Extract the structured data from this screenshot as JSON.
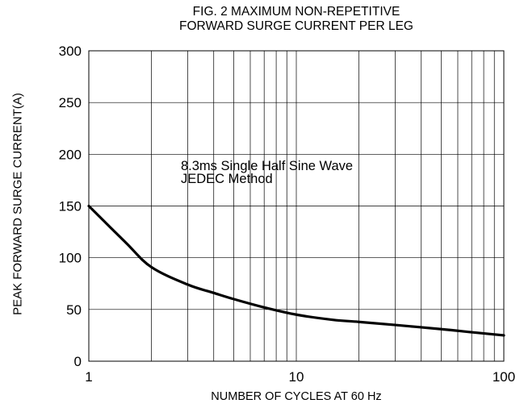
{
  "chart_data": {
    "type": "line",
    "title_lines": [
      "FIG. 2 MAXIMUM NON-REPETITIVE",
      "FORWARD SURGE CURRENT PER LEG"
    ],
    "xlabel": "NUMBER OF CYCLES AT 60 Hz",
    "ylabel": "PEAK FORWARD SURGE CURRENT(A)",
    "x_scale": "log",
    "xlim": [
      1,
      100
    ],
    "ylim": [
      0,
      300
    ],
    "x_ticks": [
      1,
      10,
      100
    ],
    "x_tick_labels": [
      "1",
      "10",
      "100"
    ],
    "y_ticks": [
      0,
      50,
      100,
      150,
      200,
      250,
      300
    ],
    "y_tick_labels": [
      "0",
      "50",
      "100",
      "150",
      "200",
      "250",
      "300"
    ],
    "grid": true,
    "annotations": [
      "8.3ms Single Half Sine Wave",
      "JEDEC Method"
    ],
    "series": [
      {
        "x": [
          1,
          1.5,
          2,
          3,
          4,
          5,
          7,
          10,
          15,
          20,
          30,
          50,
          70,
          100
        ],
        "y": [
          150,
          115,
          91,
          74,
          66,
          60,
          52,
          45,
          40,
          38,
          35,
          31,
          28,
          25
        ]
      }
    ]
  },
  "colors": {
    "line": "#000000",
    "grid": "#000000",
    "background": "#ffffff"
  }
}
